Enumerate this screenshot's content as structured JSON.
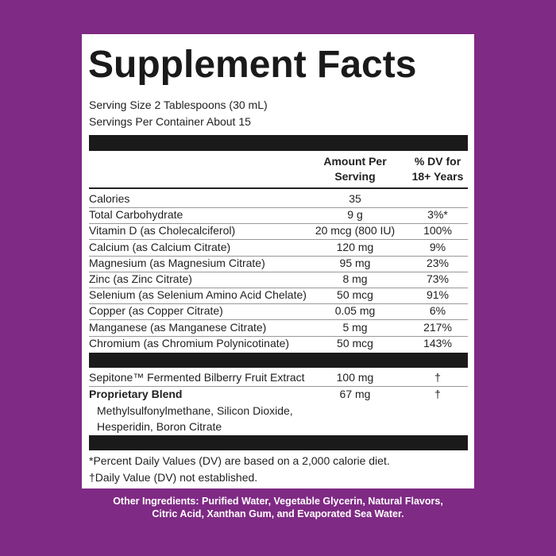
{
  "header": {
    "title": "Supplement Facts"
  },
  "serving": {
    "size": "Serving Size 2 Tablespoons (30 mL)",
    "per_container": "Servings Per Container About 15"
  },
  "table": {
    "columns": [
      "Amount Per Serving",
      "% DV for 18+ Years"
    ],
    "rows": [
      {
        "name": "Calories",
        "amount": "35"
      },
      {
        "name": "Total Carbohydrate",
        "amount": "9 g",
        "dv": "3%*"
      },
      {
        "name": "Vitamin D (as Cholecalciferol)",
        "amount": "20 mcg (800 IU)",
        "dv": "100%"
      },
      {
        "name": "Calcium (as Calcium Citrate)",
        "amount": "120 mg",
        "dv": "9%"
      },
      {
        "name": "Magnesium (as Magnesium Citrate)",
        "amount": "95 mg",
        "dv": "23%"
      },
      {
        "name": "Zinc (as Zinc Citrate)",
        "amount": "8 mg",
        "dv": "73%"
      },
      {
        "name": "Selenium (as Selenium Amino Acid Chelate)",
        "amount": "50 mcg",
        "dv": "91%"
      },
      {
        "name": "Copper (as Copper Citrate)",
        "amount": "0.05 mg",
        "dv": "6%"
      },
      {
        "name": "Manganese (as Manganese Citrate)",
        "amount": "5 mg",
        "dv": "217%"
      },
      {
        "name": "Chromium (as Chromium Polynicotinate)",
        "amount": "50 mcg",
        "dv": "143%"
      }
    ],
    "extra_rows": [
      {
        "name": "Sepitone™ Fermented Bilberry Fruit Extract",
        "amount": "100 mg",
        "dv": "†"
      },
      {
        "name": "Proprietary Blend",
        "amount": "67 mg",
        "dv": "†",
        "ingredients": [
          "Methylsulfonylmethane, Silicon Dioxide,",
          "Hesperidin, Boron Citrate"
        ]
      }
    ]
  },
  "footnotes": [
    "*Percent Daily Values (DV) are based on a 2,000 calorie diet.",
    "†Daily Value (DV) not established."
  ],
  "other_ingredients": "Other Ingredients: Purified Water, Vegetable Glycerin, Natural Flavors, Citric Acid, Xanthan Gum, and Evaporated Sea Water."
}
